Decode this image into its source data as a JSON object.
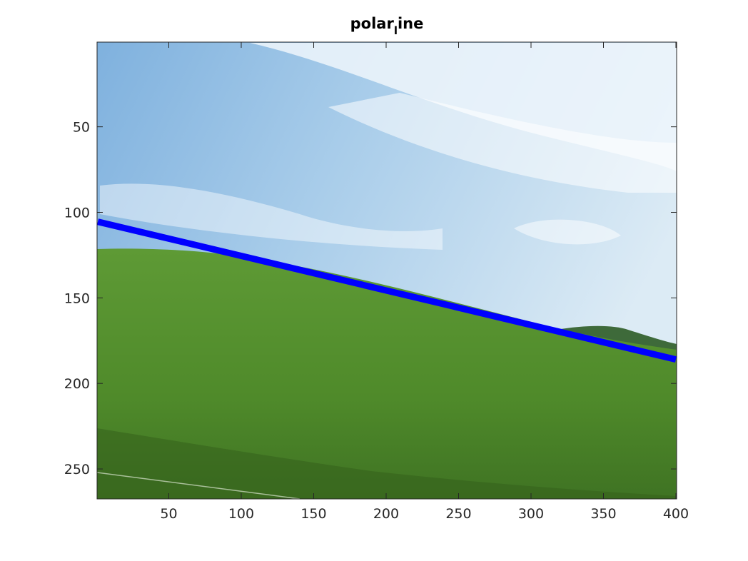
{
  "chart_data": {
    "type": "line",
    "title": "polar",
    "title_subscript": "l",
    "title_suffix": "ine",
    "background": "photo-grassy-hill-under-blue-sky",
    "x_ticks": [
      50,
      100,
      150,
      200,
      250,
      300,
      350,
      400
    ],
    "y_ticks": [
      50,
      100,
      150,
      200,
      250
    ],
    "xlim": [
      0.5,
      400.5
    ],
    "ylim": [
      0.5,
      267.5
    ],
    "y_reversed": true,
    "grid": false,
    "series": [
      {
        "x": [
          1,
          400
        ],
        "y": [
          105.5,
          186
        ],
        "color": "#0000ff"
      }
    ]
  }
}
